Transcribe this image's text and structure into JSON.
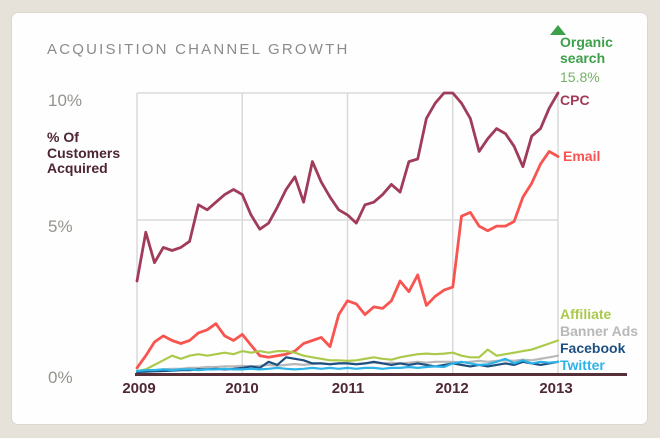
{
  "title": "ACQUISITION CHANNEL GROWTH",
  "y_axis": {
    "title_lines": [
      "% Of",
      "Customers",
      "Acquired"
    ],
    "ticks": [
      "10%",
      "5%",
      "0%"
    ]
  },
  "x_axis": {
    "ticks": [
      "2009",
      "2010",
      "2011",
      "2012",
      "2013"
    ]
  },
  "chart_data": {
    "type": "line",
    "title": "ACQUISITION CHANNEL GROWTH",
    "ylabel": "% Of Customers Acquired",
    "ylim": [
      0,
      10
    ],
    "x_unit": "monthly",
    "x_range": [
      "2009-01",
      "2013-01"
    ],
    "grid": "light gray, 5% horizontal line and yearly vertical lines",
    "legend_position": "right",
    "series": [
      {
        "name": "Organic search",
        "color": "#3da04a",
        "value_color": "#74b267",
        "latest_value": "15.8%",
        "off_chart": true,
        "values": []
      },
      {
        "name": "CPC",
        "color": "#a03c59",
        "values": [
          3.0,
          4.6,
          3.6,
          4.1,
          4.0,
          4.1,
          4.3,
          5.6,
          5.4,
          5.7,
          6.0,
          6.2,
          6.0,
          5.2,
          4.7,
          4.9,
          5.5,
          6.2,
          6.7,
          5.7,
          7.3,
          6.5,
          5.9,
          5.4,
          5.2,
          4.9,
          5.6,
          5.7,
          6.0,
          6.4,
          6.1,
          7.3,
          7.4,
          9.0,
          9.6,
          10.0,
          10.0,
          9.6,
          9.0,
          7.7,
          8.2,
          8.6,
          8.4,
          7.9,
          7.1,
          8.3,
          8.6,
          9.4,
          10.0
        ]
      },
      {
        "name": "Email",
        "color": "#f85450",
        "values": [
          0.15,
          0.55,
          1.0,
          1.2,
          1.05,
          0.95,
          1.05,
          1.3,
          1.4,
          1.6,
          1.2,
          1.05,
          1.25,
          0.9,
          0.55,
          0.5,
          0.55,
          0.6,
          0.7,
          0.95,
          1.05,
          1.15,
          0.85,
          1.9,
          2.35,
          2.25,
          1.9,
          2.15,
          2.1,
          2.35,
          3.0,
          2.65,
          3.2,
          2.2,
          2.5,
          2.7,
          2.8,
          5.15,
          5.3,
          4.8,
          4.65,
          4.8,
          4.8,
          4.95,
          5.9,
          6.45,
          7.2,
          7.7,
          7.5
        ]
      },
      {
        "name": "Affiliate",
        "color": "#abca4b",
        "values": [
          0.05,
          0.1,
          0.25,
          0.4,
          0.55,
          0.45,
          0.55,
          0.6,
          0.55,
          0.6,
          0.65,
          0.6,
          0.7,
          0.65,
          0.7,
          0.65,
          0.7,
          0.7,
          0.65,
          0.55,
          0.5,
          0.45,
          0.4,
          0.4,
          0.38,
          0.4,
          0.45,
          0.5,
          0.45,
          0.42,
          0.5,
          0.55,
          0.6,
          0.62,
          0.6,
          0.62,
          0.65,
          0.55,
          0.5,
          0.5,
          0.75,
          0.55,
          0.6,
          0.65,
          0.7,
          0.75,
          0.85,
          0.95,
          1.05
        ]
      },
      {
        "name": "Banner Ads",
        "color": "#b8b8b8",
        "values": [
          0.02,
          0.05,
          0.08,
          0.1,
          0.12,
          0.12,
          0.15,
          0.15,
          0.18,
          0.18,
          0.2,
          0.2,
          0.22,
          0.2,
          0.22,
          0.25,
          0.22,
          0.25,
          0.28,
          0.25,
          0.28,
          0.3,
          0.28,
          0.3,
          0.3,
          0.28,
          0.3,
          0.32,
          0.3,
          0.32,
          0.3,
          0.32,
          0.35,
          0.32,
          0.35,
          0.35,
          0.35,
          0.32,
          0.35,
          0.38,
          0.35,
          0.38,
          0.4,
          0.38,
          0.42,
          0.4,
          0.45,
          0.5,
          0.55
        ]
      },
      {
        "name": "Facebook",
        "color": "#1d4f80",
        "values": [
          0.02,
          0.03,
          0.04,
          0.05,
          0.06,
          0.08,
          0.08,
          0.1,
          0.1,
          0.12,
          0.1,
          0.12,
          0.15,
          0.2,
          0.15,
          0.35,
          0.25,
          0.5,
          0.45,
          0.4,
          0.3,
          0.3,
          0.27,
          0.3,
          0.3,
          0.27,
          0.3,
          0.35,
          0.3,
          0.25,
          0.3,
          0.25,
          0.3,
          0.25,
          0.2,
          0.25,
          0.3,
          0.25,
          0.2,
          0.25,
          0.2,
          0.25,
          0.3,
          0.25,
          0.35,
          0.3,
          0.25,
          0.3,
          0.35
        ]
      },
      {
        "name": "Twitter",
        "color": "#2cb3e8",
        "values": [
          0.05,
          0.08,
          0.08,
          0.1,
          0.08,
          0.1,
          0.1,
          0.08,
          0.1,
          0.1,
          0.12,
          0.1,
          0.1,
          0.12,
          0.1,
          0.12,
          0.15,
          0.12,
          0.1,
          0.12,
          0.15,
          0.12,
          0.15,
          0.12,
          0.15,
          0.12,
          0.15,
          0.15,
          0.12,
          0.15,
          0.15,
          0.18,
          0.15,
          0.18,
          0.2,
          0.18,
          0.3,
          0.35,
          0.3,
          0.25,
          0.27,
          0.35,
          0.45,
          0.3,
          0.4,
          0.3,
          0.35,
          0.32,
          0.35
        ]
      }
    ]
  }
}
